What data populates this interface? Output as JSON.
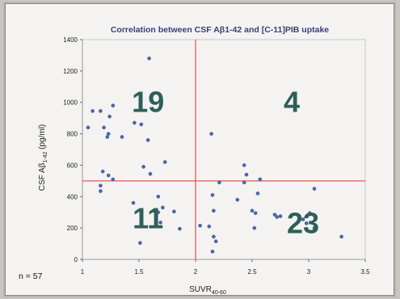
{
  "chart_data": {
    "type": "scatter",
    "title": "Correlation between CSF Aβ1-42 and [C-11]PIB uptake",
    "xlabel": "SUVR",
    "xlabel_subscript": "40-60",
    "ylabel": "CSF Aβ",
    "ylabel_subscript": "1-42",
    "ylabel_suffix": " (pg/ml)",
    "xlim": [
      1,
      3.5
    ],
    "ylim": [
      0,
      1400
    ],
    "x_ticks": [
      "1",
      "1.5",
      "2",
      "2.5",
      "3",
      "3.5"
    ],
    "y_ticks": [
      "0",
      "200",
      "400",
      "600",
      "800",
      "1000",
      "1200",
      "1400"
    ],
    "x_tick_values": [
      1,
      1.5,
      2,
      2.5,
      3,
      3.5
    ],
    "y_tick_values": [
      0,
      200,
      400,
      600,
      800,
      1000,
      1200,
      1400
    ],
    "threshold_x": 2,
    "threshold_y": 500,
    "marker_color": "#4a68b0",
    "threshold_color": "#e05a5a",
    "annotation_color": "#2e5f59",
    "quadrant_counts": {
      "upper_left": "19",
      "upper_right": "4",
      "lower_left": "11",
      "lower_right": "23"
    },
    "quadrant_count_positions": {
      "upper_left": [
        1.58,
        1000
      ],
      "upper_right": [
        2.85,
        1000
      ],
      "lower_left": [
        1.58,
        260
      ],
      "lower_right": [
        2.95,
        230
      ]
    },
    "sample_size": "n = 57",
    "points": [
      {
        "x": 1.05,
        "y": 840
      },
      {
        "x": 1.09,
        "y": 945
      },
      {
        "x": 1.16,
        "y": 945
      },
      {
        "x": 1.19,
        "y": 840
      },
      {
        "x": 1.22,
        "y": 780
      },
      {
        "x": 1.24,
        "y": 910
      },
      {
        "x": 1.27,
        "y": 980
      },
      {
        "x": 1.23,
        "y": 800
      },
      {
        "x": 1.35,
        "y": 780
      },
      {
        "x": 1.46,
        "y": 870
      },
      {
        "x": 1.52,
        "y": 860
      },
      {
        "x": 1.59,
        "y": 1280
      },
      {
        "x": 1.58,
        "y": 760
      },
      {
        "x": 1.18,
        "y": 560
      },
      {
        "x": 1.23,
        "y": 535
      },
      {
        "x": 1.27,
        "y": 510
      },
      {
        "x": 1.16,
        "y": 470
      },
      {
        "x": 1.16,
        "y": 435
      },
      {
        "x": 1.54,
        "y": 590
      },
      {
        "x": 1.6,
        "y": 545
      },
      {
        "x": 1.73,
        "y": 620
      },
      {
        "x": 1.45,
        "y": 360
      },
      {
        "x": 1.51,
        "y": 105
      },
      {
        "x": 1.63,
        "y": 310
      },
      {
        "x": 1.67,
        "y": 400
      },
      {
        "x": 1.67,
        "y": 300
      },
      {
        "x": 1.71,
        "y": 330
      },
      {
        "x": 1.69,
        "y": 235
      },
      {
        "x": 1.81,
        "y": 305
      },
      {
        "x": 1.86,
        "y": 195
      },
      {
        "x": 2.04,
        "y": 215
      },
      {
        "x": 2.14,
        "y": 800
      },
      {
        "x": 2.15,
        "y": 410
      },
      {
        "x": 2.16,
        "y": 310
      },
      {
        "x": 2.12,
        "y": 210
      },
      {
        "x": 2.16,
        "y": 145
      },
      {
        "x": 2.15,
        "y": 50
      },
      {
        "x": 2.18,
        "y": 115
      },
      {
        "x": 2.21,
        "y": 490
      },
      {
        "x": 2.37,
        "y": 380
      },
      {
        "x": 2.43,
        "y": 600
      },
      {
        "x": 2.45,
        "y": 540
      },
      {
        "x": 2.43,
        "y": 490
      },
      {
        "x": 2.5,
        "y": 310
      },
      {
        "x": 2.53,
        "y": 295
      },
      {
        "x": 2.57,
        "y": 510
      },
      {
        "x": 2.55,
        "y": 420
      },
      {
        "x": 2.52,
        "y": 200
      },
      {
        "x": 2.7,
        "y": 285
      },
      {
        "x": 2.72,
        "y": 270
      },
      {
        "x": 2.75,
        "y": 275
      },
      {
        "x": 2.95,
        "y": 255
      },
      {
        "x": 2.98,
        "y": 230
      },
      {
        "x": 3.01,
        "y": 295
      },
      {
        "x": 3.05,
        "y": 450
      },
      {
        "x": 3.05,
        "y": 200
      },
      {
        "x": 3.29,
        "y": 145
      }
    ]
  }
}
